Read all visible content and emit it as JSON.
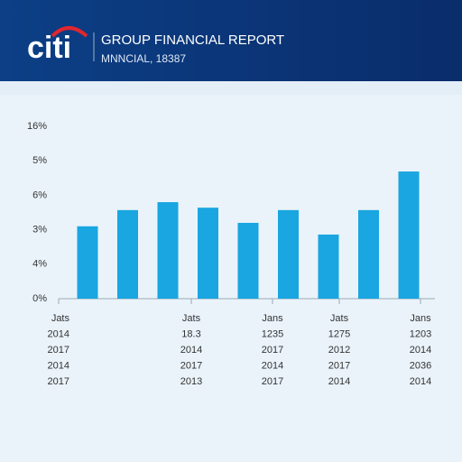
{
  "header": {
    "logo": "citi",
    "title": "GROUP FINANCIAL REPORT",
    "subtitle": "MNNCIAL, 18387"
  },
  "chart_data": {
    "type": "bar",
    "categories": [
      null,
      null,
      null,
      null,
      null,
      null,
      null,
      null,
      null
    ],
    "values": [
      2.1,
      2.57,
      2.8,
      2.64,
      2.2,
      2.57,
      1.86,
      2.57,
      3.69
    ],
    "color": "#19a6e1",
    "ylim": [
      0,
      5
    ],
    "yticks": [
      {
        "value": 0,
        "label": "0%"
      },
      {
        "value": 1,
        "label": "4%"
      },
      {
        "value": 2,
        "label": "3%"
      },
      {
        "value": 3,
        "label": "6%"
      },
      {
        "value": 4,
        "label": "5%"
      },
      {
        "value": 5,
        "label": "16%"
      }
    ],
    "grid": false,
    "x_label_columns": [
      [
        "Jats",
        "2014",
        "2017",
        "2014",
        "2017"
      ],
      [
        "Jats",
        "18.3",
        "2014",
        "2017",
        "2013"
      ],
      [
        "Jans",
        "1235",
        "2017",
        "2014",
        "2017"
      ],
      [
        "Jats",
        "1275",
        "2012",
        "2017",
        "2014"
      ],
      [
        "Jans",
        "1203",
        "2014",
        "2036",
        "2014"
      ]
    ]
  }
}
